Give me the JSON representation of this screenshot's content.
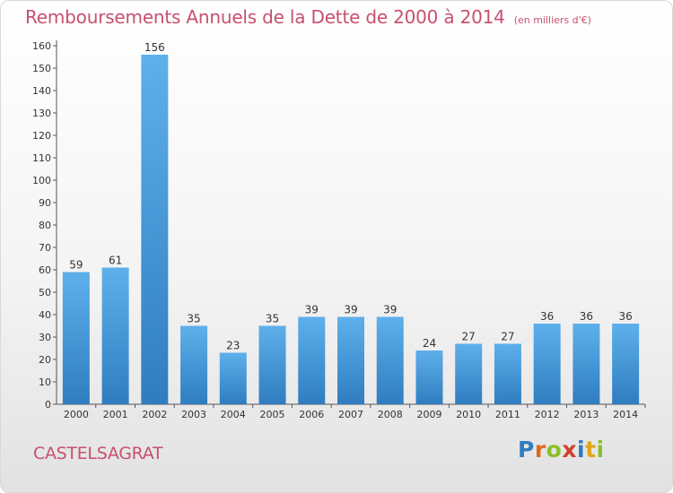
{
  "title": "Remboursements Annuels de la Dette de 2000 à 2014",
  "subtitle": "(en milliers d'€)",
  "location": "CASTELSAGRAT",
  "logo": {
    "letters": [
      "P",
      "r",
      "o",
      "x",
      "i",
      "t",
      "i"
    ],
    "colors": [
      "#2e7dc1",
      "#e06a1c",
      "#8bbf2a",
      "#d2402a",
      "#2e7dc1",
      "#e0a51c",
      "#8bbf2a"
    ]
  },
  "colors": {
    "accent": "#c8506f",
    "bar_light": "#5eb0eb",
    "bar_dark": "#2f7dc0"
  },
  "chart_data": {
    "type": "bar",
    "categories": [
      "2000",
      "2001",
      "2002",
      "2003",
      "2004",
      "2005",
      "2006",
      "2007",
      "2008",
      "2009",
      "2010",
      "2011",
      "2012",
      "2013",
      "2014"
    ],
    "values": [
      59,
      61,
      156,
      35,
      23,
      35,
      39,
      39,
      39,
      24,
      27,
      27,
      36,
      36,
      36
    ],
    "title": "Remboursements Annuels de la Dette de 2000 à 2014",
    "subtitle": "(en milliers d'€)",
    "xlabel": "",
    "ylabel": "",
    "ylim": [
      0,
      160
    ],
    "yticks": [
      0,
      10,
      20,
      30,
      40,
      50,
      60,
      70,
      80,
      90,
      100,
      110,
      120,
      130,
      140,
      150,
      160
    ],
    "grid": false,
    "legend": "none"
  }
}
